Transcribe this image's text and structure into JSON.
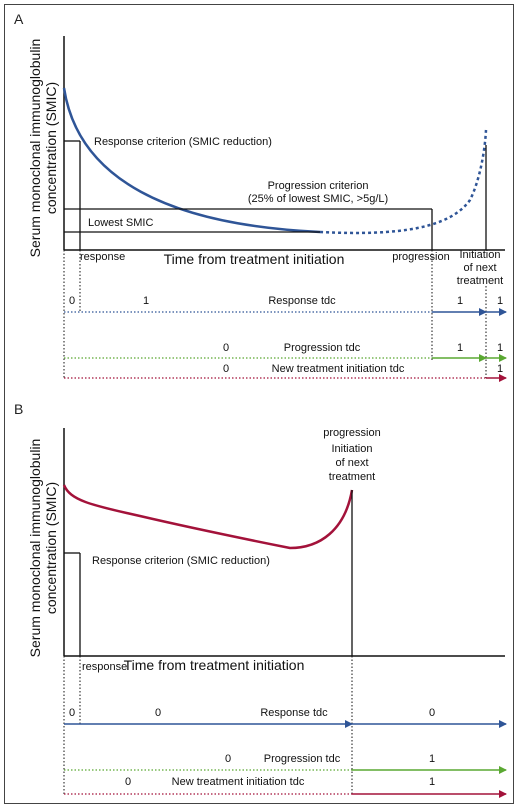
{
  "colors": {
    "blue": "#2f5597",
    "navy": "#1f3a7a",
    "green": "#5aa832",
    "crimson": "#a3123a",
    "black": "#111111"
  },
  "panelA": {
    "letter": "A",
    "y_axis_label": [
      "Serum monoclonal immunoglobulin",
      "concentration (SMIC)"
    ],
    "x_axis_label": "Time from treatment initiation",
    "response_criterion": "Response criterion (SMIC reduction)",
    "progression_criterion": [
      "Progression criterion",
      "(25% of lowest SMIC, >5g/L)"
    ],
    "lowest_smic": "Lowest SMIC",
    "event_response": "response",
    "event_progression": "progression",
    "event_next_treatment": [
      "Initiation",
      "of next",
      "treatment"
    ],
    "tdc_response": {
      "label": "Response tdc",
      "values": [
        "0",
        "1",
        "1",
        "1"
      ]
    },
    "tdc_progression": {
      "label": "Progression tdc",
      "values": [
        "0",
        "1",
        "1"
      ]
    },
    "tdc_new_treatment": {
      "label": "New treatment initiation tdc",
      "values": [
        "0",
        "1"
      ]
    }
  },
  "panelB": {
    "letter": "B",
    "y_axis_label": [
      "Serum monoclonal immunoglobulin",
      "concentration (SMIC)"
    ],
    "x_axis_label": "Time from treatment initiation",
    "response_criterion": "Response criterion (SMIC reduction)",
    "event_response": "response",
    "event_progression": "progression",
    "event_next_treatment": [
      "Initiation",
      "of next",
      "treatment"
    ],
    "tdc_response": {
      "label": "Response tdc",
      "values": [
        "0",
        "0",
        "0"
      ]
    },
    "tdc_progression": {
      "label": "Progression tdc",
      "values": [
        "0",
        "1"
      ]
    },
    "tdc_new_treatment": {
      "label": "New treatment initiation tdc",
      "values": [
        "0",
        "1"
      ]
    }
  }
}
